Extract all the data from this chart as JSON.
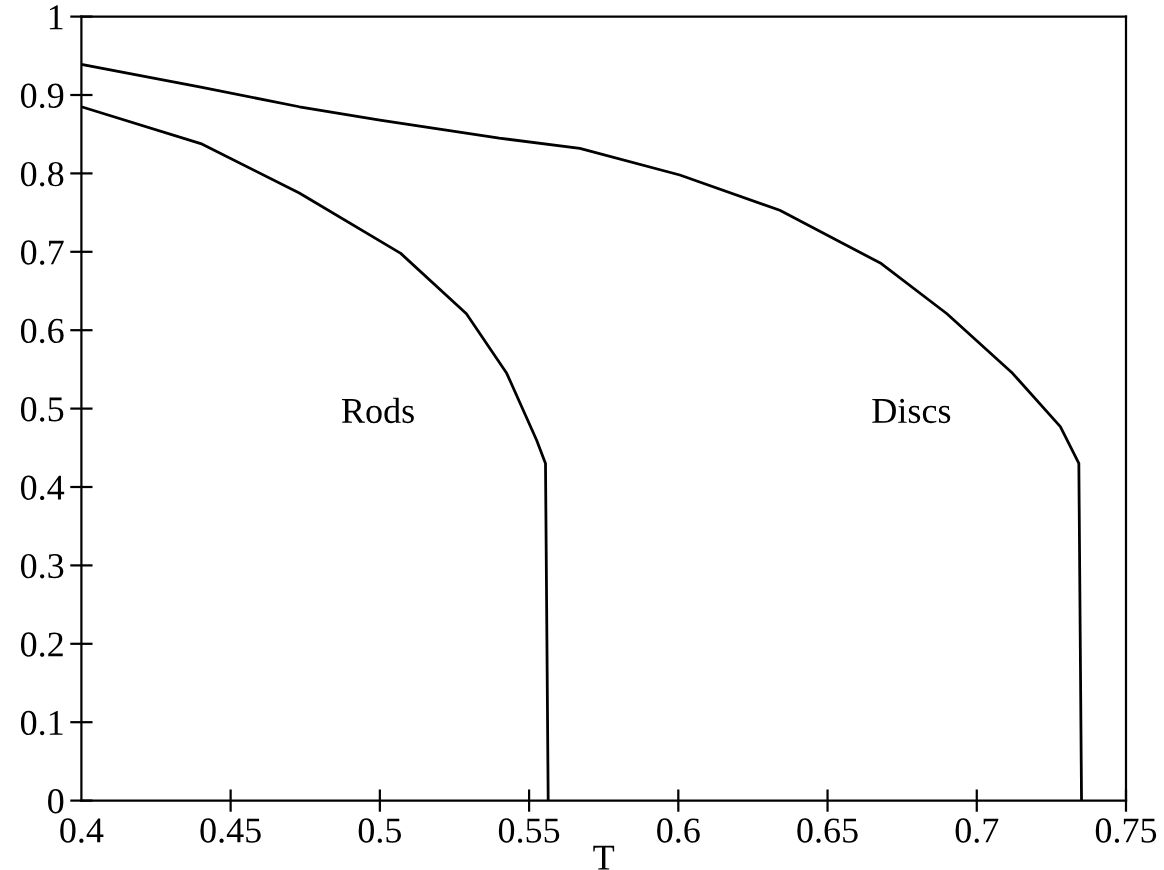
{
  "chart_data": {
    "type": "line",
    "xlabel": "T",
    "series": [
      {
        "color": "#000000",
        "x": [
          0.4,
          0.44,
          0.473,
          0.507,
          0.529,
          0.5425,
          0.5525,
          0.5555,
          0.5564
        ],
        "values": [
          0.885,
          0.838,
          0.775,
          0.698,
          0.621,
          0.545,
          0.46,
          0.43,
          0
        ]
      },
      {
        "color": "#000000",
        "x": [
          0.4,
          0.44,
          0.473,
          0.5,
          0.54,
          0.567,
          0.6005,
          0.634,
          0.668,
          0.69,
          0.712,
          0.728,
          0.7342,
          0.7351
        ],
        "values": [
          0.939,
          0.91,
          0.885,
          0.868,
          0.845,
          0.832,
          0.798,
          0.753,
          0.685,
          0.621,
          0.545,
          0.477,
          0.43,
          0
        ]
      }
    ],
    "annotations": [
      "Rods",
      "Discs"
    ],
    "xlim": [
      0.4,
      0.75
    ],
    "ylim": [
      0,
      1
    ],
    "xticks": [
      0.4,
      0.45,
      0.5,
      0.55,
      0.6,
      0.65,
      0.7,
      0.75
    ],
    "yticks": [
      0,
      0.1,
      0.2,
      0.3,
      0.4,
      0.5,
      0.6,
      0.7,
      0.8,
      0.9,
      1
    ],
    "grid": false,
    "legend": false,
    "marker": "none",
    "line_style": "solid"
  }
}
